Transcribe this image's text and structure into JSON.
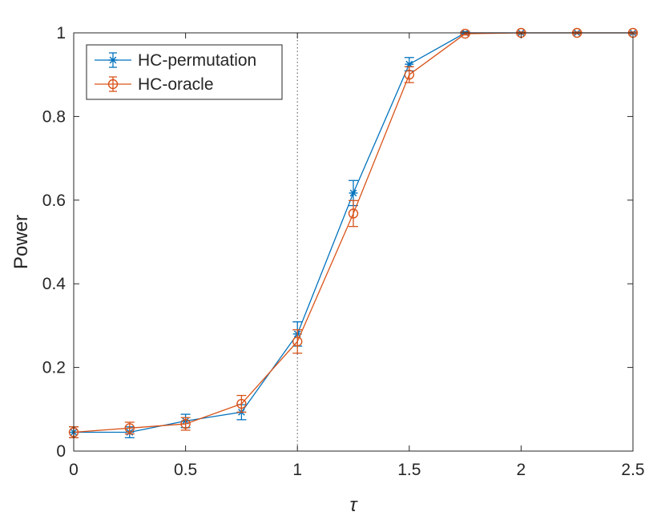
{
  "chart_data": {
    "type": "line",
    "title": "",
    "xlabel": "τ",
    "ylabel": "Power",
    "xlim": [
      0,
      2.5
    ],
    "ylim": [
      0,
      1
    ],
    "xticks": [
      "0",
      "0.5",
      "1",
      "1.5",
      "2",
      "2.5"
    ],
    "yticks": [
      "0",
      "0.2",
      "0.4",
      "0.6",
      "0.8",
      "1"
    ],
    "xtick_values": [
      0,
      0.5,
      1,
      1.5,
      2,
      2.5
    ],
    "ytick_values": [
      0,
      0.2,
      0.4,
      0.6,
      0.8,
      1
    ],
    "grid": false,
    "legend_position": "top-left",
    "reference_line": {
      "axis": "x",
      "value": 1,
      "style": "dotted"
    },
    "x": [
      0,
      0.25,
      0.5,
      0.75,
      1,
      1.25,
      1.5,
      1.75,
      2,
      2.25,
      2.5
    ],
    "series": [
      {
        "name": "HC-permutation",
        "color": "#0072BD",
        "marker": "asterisk",
        "values": [
          0.045,
          0.045,
          0.072,
          0.093,
          0.28,
          0.617,
          0.925,
          1.0,
          1.0,
          1.0,
          1.0
        ],
        "error": [
          0.013,
          0.013,
          0.016,
          0.018,
          0.029,
          0.03,
          0.016,
          0.003,
          0.002,
          0.002,
          0.002
        ]
      },
      {
        "name": "HC-oracle",
        "color": "#D95319",
        "marker": "circle",
        "values": [
          0.045,
          0.055,
          0.065,
          0.113,
          0.262,
          0.568,
          0.9,
          0.998,
          1.0,
          1.0,
          1.0
        ],
        "error": [
          0.013,
          0.014,
          0.015,
          0.02,
          0.028,
          0.031,
          0.019,
          0.003,
          0.002,
          0.002,
          0.002
        ]
      }
    ]
  }
}
